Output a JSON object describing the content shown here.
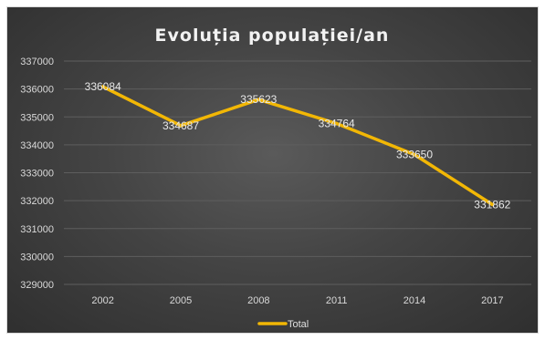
{
  "chart_data": {
    "type": "line",
    "title": "Evoluția populației/an",
    "xlabel": "",
    "ylabel": "",
    "categories": [
      "2002",
      "2005",
      "2008",
      "2011",
      "2014",
      "2017"
    ],
    "series": [
      {
        "name": "Total",
        "values": [
          336084,
          334687,
          335623,
          334764,
          333650,
          331862
        ],
        "color": "#f2b705"
      }
    ],
    "ylim": [
      329000,
      337000
    ],
    "yticks": [
      329000,
      330000,
      331000,
      332000,
      333000,
      334000,
      335000,
      336000,
      337000
    ],
    "grid": true,
    "legend": "bottom",
    "data_labels": true,
    "background": "#404040"
  }
}
